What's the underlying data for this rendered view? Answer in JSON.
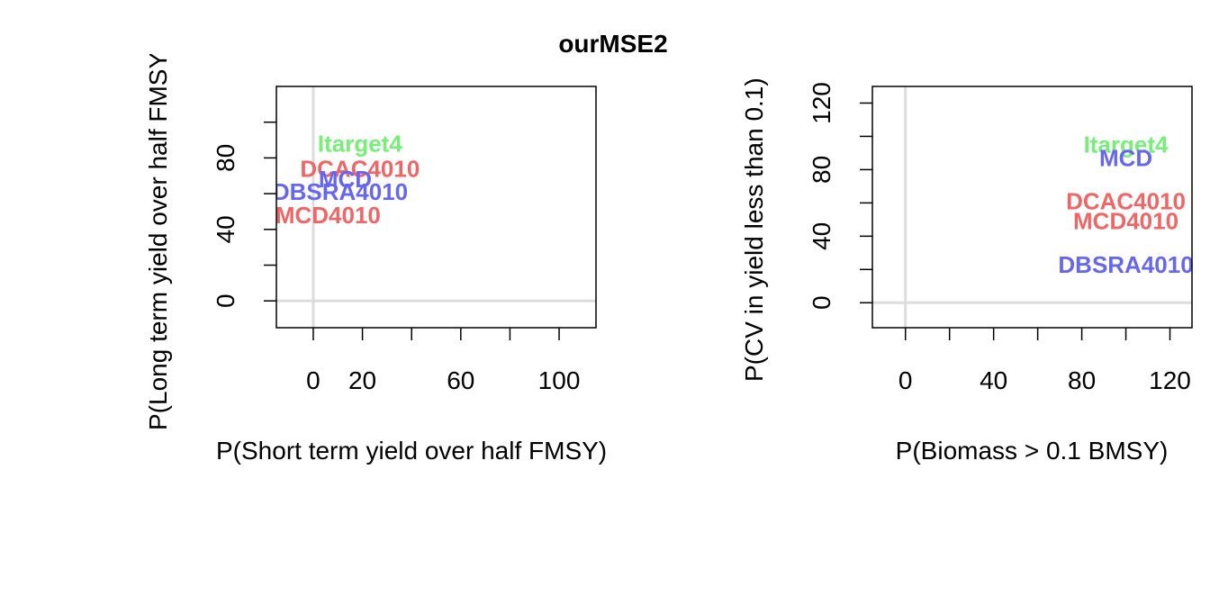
{
  "title": "ourMSE2",
  "chart_data": [
    {
      "type": "scatter",
      "xlabel": "P(Short term yield over half FMSY)",
      "ylabel": "P(Long term yield over half FMSY)",
      "xlim": [
        -15,
        115
      ],
      "ylim": [
        -15,
        120
      ],
      "x_ticks": [
        0,
        20,
        40,
        60,
        80,
        100
      ],
      "x_tick_labels": [
        "0",
        "20",
        "",
        "60",
        "",
        "100"
      ],
      "y_ticks": [
        0,
        20,
        40,
        60,
        80,
        100
      ],
      "y_tick_labels": [
        "0",
        "",
        "40",
        "",
        "80",
        ""
      ],
      "reference_lines": {
        "x": 0,
        "y": 0
      },
      "points": [
        {
          "label": "Itarget4",
          "x": 19,
          "y": 88,
          "color": "#77ee77"
        },
        {
          "label": "DCAC4010",
          "x": 19,
          "y": 74,
          "color": "#ee6666"
        },
        {
          "label": "MCD",
          "x": 13,
          "y": 68,
          "color": "#6666ee"
        },
        {
          "label": "DBSRA4010",
          "x": 11,
          "y": 61,
          "color": "#6666ee"
        },
        {
          "label": "MCD4010",
          "x": 6,
          "y": 48,
          "color": "#ee6666"
        }
      ]
    },
    {
      "type": "scatter",
      "xlabel": "P(Biomass > 0.1 BMSY)",
      "ylabel": "P(CV in yield less than 0.1)",
      "xlim": [
        -15,
        130
      ],
      "ylim": [
        -15,
        130
      ],
      "x_ticks": [
        0,
        20,
        40,
        60,
        80,
        100,
        120
      ],
      "x_tick_labels": [
        "0",
        "",
        "40",
        "",
        "80",
        "",
        "120"
      ],
      "y_ticks": [
        0,
        20,
        40,
        60,
        80,
        100,
        120
      ],
      "y_tick_labels": [
        "0",
        "",
        "40",
        "",
        "80",
        "",
        "120"
      ],
      "reference_lines": {
        "x": 0,
        "y": 0
      },
      "points": [
        {
          "label": "Itarget4",
          "x": 100,
          "y": 95,
          "color": "#77ee77"
        },
        {
          "label": "MCD",
          "x": 100,
          "y": 87,
          "color": "#6666ee"
        },
        {
          "label": "DCAC4010",
          "x": 100,
          "y": 61,
          "color": "#ee6666"
        },
        {
          "label": "MCD4010",
          "x": 100,
          "y": 49,
          "color": "#ee6666"
        },
        {
          "label": "DBSRA4010",
          "x": 100,
          "y": 23,
          "color": "#6666ee"
        }
      ]
    }
  ]
}
